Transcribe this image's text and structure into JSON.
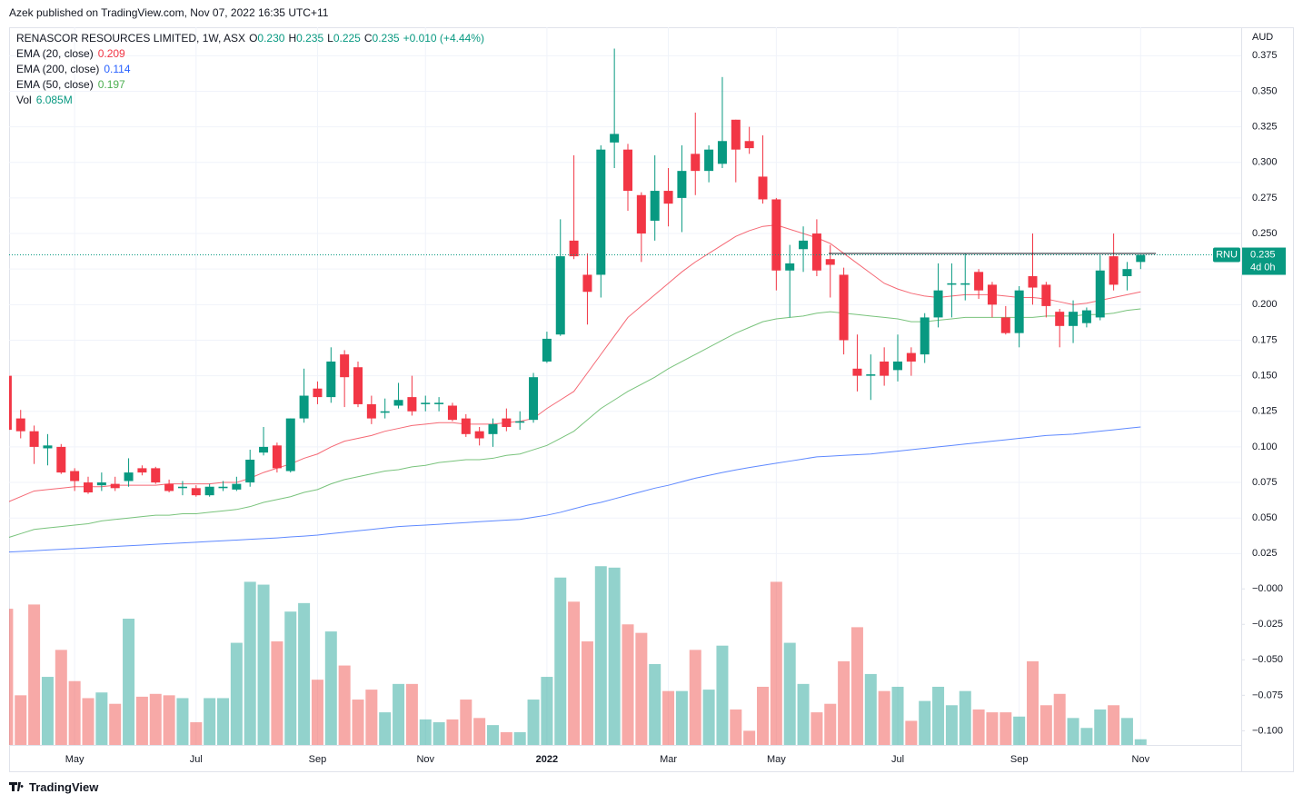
{
  "header": "Azek published on TradingView.com, Nov 07, 2022 16:35 UTC+11",
  "footer": "TradingView",
  "chart_data": [
    {
      "type": "candlestick",
      "title": "RENASCOR RESOURCES LIMITED, 1W, ASX",
      "ohlc_legend": [
        {
          "key": "O",
          "value": "0.230"
        },
        {
          "key": "H",
          "value": "0.235"
        },
        {
          "key": "L",
          "value": "0.225"
        },
        {
          "key": "C",
          "value": "0.235"
        }
      ],
      "change_label": "+0.010 (+4.44%)",
      "axis_title": "AUD",
      "up_color": "#089981",
      "down_color": "#f23645",
      "last_label": {
        "symbol": "RNU",
        "price": "0.235",
        "countdown": "4d 0h"
      },
      "hline": 0.236,
      "categories": [
        null,
        null,
        null,
        null,
        null,
        "May",
        null,
        null,
        null,
        null,
        null,
        null,
        null,
        null,
        "Jul",
        null,
        null,
        null,
        null,
        null,
        null,
        null,
        null,
        "Sep",
        null,
        null,
        null,
        null,
        null,
        null,
        null,
        "Nov",
        null,
        null,
        null,
        null,
        null,
        null,
        null,
        null,
        "2022",
        null,
        null,
        null,
        null,
        null,
        null,
        null,
        null,
        "Mar",
        null,
        null,
        null,
        null,
        null,
        null,
        null,
        "May",
        null,
        null,
        null,
        null,
        null,
        null,
        null,
        null,
        "Jul",
        null,
        null,
        null,
        null,
        null,
        null,
        null,
        null,
        "Sep",
        null,
        null,
        null,
        null,
        null,
        null,
        null,
        null,
        "Nov"
      ],
      "open": [
        0.15,
        0.12,
        0.111,
        0.099,
        0.1,
        0.083,
        0.075,
        0.073,
        0.074,
        0.076,
        0.085,
        0.085,
        0.074,
        0.071,
        0.071,
        0.066,
        0.071,
        0.07,
        0.075,
        0.096,
        0.101,
        0.083,
        0.12,
        0.141,
        0.135,
        0.165,
        0.156,
        0.13,
        0.124,
        0.129,
        0.135,
        0.13,
        0.13,
        0.129,
        0.12,
        0.111,
        0.109,
        0.12,
        0.117,
        0.119,
        0.16,
        0.179,
        0.245,
        0.221,
        0.221,
        0.314,
        0.309,
        0.277,
        0.259,
        0.28,
        0.275,
        0.306,
        0.294,
        0.299,
        0.33,
        0.315,
        0.29,
        0.274,
        0.224,
        0.239,
        0.25,
        0.232,
        0.221,
        0.155,
        0.15,
        0.16,
        0.154,
        0.166,
        0.165,
        0.191,
        0.214,
        0.214,
        0.223,
        0.214,
        0.191,
        0.18,
        0.22,
        0.214,
        0.195,
        0.185,
        0.187,
        0.191,
        0.234,
        0.22,
        0.23
      ],
      "high": [
        0.152,
        0.126,
        0.115,
        0.109,
        0.102,
        0.085,
        0.079,
        0.082,
        0.079,
        0.092,
        0.087,
        0.086,
        0.077,
        0.076,
        0.073,
        0.074,
        0.076,
        0.079,
        0.098,
        0.114,
        0.103,
        0.12,
        0.155,
        0.146,
        0.17,
        0.168,
        0.16,
        0.136,
        0.134,
        0.145,
        0.15,
        0.136,
        0.135,
        0.131,
        0.123,
        0.114,
        0.12,
        0.127,
        0.125,
        0.152,
        0.181,
        0.26,
        0.305,
        0.236,
        0.312,
        0.38,
        0.313,
        0.279,
        0.305,
        0.296,
        0.312,
        0.335,
        0.312,
        0.36,
        0.33,
        0.325,
        0.319,
        0.275,
        0.242,
        0.255,
        0.26,
        0.242,
        0.226,
        0.179,
        0.165,
        0.17,
        0.179,
        0.17,
        0.194,
        0.229,
        0.229,
        0.236,
        0.225,
        0.216,
        0.199,
        0.213,
        0.25,
        0.216,
        0.197,
        0.203,
        0.198,
        0.235,
        0.25,
        0.23,
        0.235
      ],
      "low": [
        0.108,
        0.106,
        0.088,
        0.087,
        0.081,
        0.069,
        0.067,
        0.069,
        0.069,
        0.072,
        0.08,
        0.074,
        0.068,
        0.066,
        0.065,
        0.065,
        0.069,
        0.069,
        0.072,
        0.094,
        0.082,
        0.082,
        0.117,
        0.13,
        0.131,
        0.128,
        0.128,
        0.116,
        0.12,
        0.127,
        0.122,
        0.125,
        0.125,
        0.118,
        0.107,
        0.101,
        0.1,
        0.111,
        0.112,
        0.117,
        0.159,
        0.178,
        0.232,
        0.186,
        0.205,
        0.296,
        0.266,
        0.23,
        0.245,
        0.255,
        0.251,
        0.277,
        0.286,
        0.296,
        0.286,
        0.306,
        0.271,
        0.21,
        0.191,
        0.223,
        0.22,
        0.205,
        0.165,
        0.139,
        0.133,
        0.143,
        0.146,
        0.15,
        0.159,
        0.184,
        0.191,
        0.203,
        0.204,
        0.191,
        0.179,
        0.17,
        0.2,
        0.191,
        0.17,
        0.173,
        0.184,
        0.189,
        0.21,
        0.21,
        0.225
      ],
      "close": [
        0.112,
        0.111,
        0.1,
        0.101,
        0.082,
        0.076,
        0.068,
        0.075,
        0.071,
        0.082,
        0.082,
        0.075,
        0.069,
        0.072,
        0.066,
        0.072,
        0.072,
        0.074,
        0.091,
        0.1,
        0.085,
        0.12,
        0.136,
        0.135,
        0.16,
        0.149,
        0.13,
        0.12,
        0.125,
        0.133,
        0.125,
        0.131,
        0.131,
        0.119,
        0.109,
        0.106,
        0.116,
        0.114,
        0.118,
        0.149,
        0.176,
        0.234,
        0.234,
        0.209,
        0.309,
        0.32,
        0.28,
        0.25,
        0.28,
        0.271,
        0.294,
        0.294,
        0.309,
        0.315,
        0.309,
        0.31,
        0.274,
        0.224,
        0.229,
        0.245,
        0.224,
        0.228,
        0.175,
        0.15,
        0.151,
        0.15,
        0.16,
        0.16,
        0.191,
        0.21,
        0.215,
        0.215,
        0.21,
        0.2,
        0.18,
        0.21,
        0.212,
        0.199,
        0.185,
        0.195,
        0.196,
        0.224,
        0.214,
        0.225,
        0.235
      ],
      "series": [
        {
          "name": "EMA (20, close)",
          "color": "#f23645",
          "last_label": "0.209",
          "values": [
            0.061,
            0.065,
            0.069,
            0.07,
            0.071,
            0.072,
            0.072,
            0.072,
            0.073,
            0.073,
            0.073,
            0.073,
            0.074,
            0.074,
            0.074,
            0.074,
            0.075,
            0.075,
            0.078,
            0.082,
            0.085,
            0.088,
            0.092,
            0.095,
            0.1,
            0.104,
            0.106,
            0.108,
            0.111,
            0.113,
            0.115,
            0.116,
            0.117,
            0.117,
            0.116,
            0.116,
            0.116,
            0.117,
            0.118,
            0.12,
            0.127,
            0.133,
            0.139,
            0.152,
            0.165,
            0.178,
            0.191,
            0.199,
            0.207,
            0.215,
            0.223,
            0.23,
            0.236,
            0.242,
            0.248,
            0.252,
            0.255,
            0.256,
            0.253,
            0.25,
            0.247,
            0.243,
            0.236,
            0.229,
            0.222,
            0.215,
            0.211,
            0.208,
            0.206,
            0.205,
            0.206,
            0.207,
            0.207,
            0.207,
            0.206,
            0.205,
            0.205,
            0.204,
            0.202,
            0.2,
            0.201,
            0.203,
            0.205,
            0.207,
            0.209
          ]
        },
        {
          "name": "EMA (200, close)",
          "color": "#2962ff",
          "last_label": "0.114",
          "values": [
            0.026,
            0.0265,
            0.027,
            0.0275,
            0.028,
            0.0285,
            0.029,
            0.0295,
            0.03,
            0.0305,
            0.031,
            0.0315,
            0.032,
            0.0325,
            0.033,
            0.0335,
            0.034,
            0.0345,
            0.035,
            0.0355,
            0.036,
            0.0367,
            0.0373,
            0.038,
            0.039,
            0.04,
            0.041,
            0.042,
            0.043,
            0.044,
            0.0445,
            0.045,
            0.0456,
            0.0462,
            0.0468,
            0.0474,
            0.048,
            0.0485,
            0.049,
            0.0505,
            0.052,
            0.054,
            0.0565,
            0.059,
            0.061,
            0.0635,
            0.066,
            0.0685,
            0.071,
            0.073,
            0.0755,
            0.078,
            0.08,
            0.082,
            0.0838,
            0.0855,
            0.087,
            0.0885,
            0.09,
            0.0915,
            0.093,
            0.0935,
            0.094,
            0.0945,
            0.095,
            0.096,
            0.097,
            0.098,
            0.099,
            0.1,
            0.101,
            0.102,
            0.103,
            0.104,
            0.105,
            0.106,
            0.107,
            0.108,
            0.1085,
            0.109,
            0.11,
            0.111,
            0.112,
            0.113,
            0.114
          ]
        },
        {
          "name": "EMA (50, close)",
          "color": "#4caf50",
          "last_label": "0.197",
          "values": [
            0.036,
            0.039,
            0.042,
            0.043,
            0.044,
            0.045,
            0.046,
            0.048,
            0.049,
            0.05,
            0.051,
            0.052,
            0.052,
            0.053,
            0.053,
            0.054,
            0.055,
            0.056,
            0.058,
            0.061,
            0.063,
            0.065,
            0.068,
            0.07,
            0.074,
            0.077,
            0.079,
            0.081,
            0.083,
            0.084,
            0.086,
            0.087,
            0.089,
            0.09,
            0.091,
            0.091,
            0.092,
            0.094,
            0.095,
            0.098,
            0.101,
            0.106,
            0.111,
            0.119,
            0.127,
            0.133,
            0.139,
            0.144,
            0.149,
            0.155,
            0.16,
            0.165,
            0.17,
            0.175,
            0.18,
            0.184,
            0.188,
            0.19,
            0.191,
            0.192,
            0.194,
            0.195,
            0.194,
            0.193,
            0.192,
            0.191,
            0.19,
            0.188,
            0.188,
            0.189,
            0.19,
            0.191,
            0.191,
            0.191,
            0.191,
            0.191,
            0.191,
            0.192,
            0.192,
            0.192,
            0.193,
            0.193,
            0.194,
            0.196,
            0.197
          ]
        }
      ],
      "ylim": [
        0.015,
        0.395
      ],
      "yticks": [
        0.025,
        {
          "value": 0.05,
          "label": "0.050"
        },
        0.075,
        {
          "value": 0.1,
          "label": "0.100"
        },
        0.125,
        {
          "value": 0.15,
          "label": "0.150"
        },
        0.175,
        {
          "value": 0.2,
          "label": "0.200"
        },
        0.225,
        {
          "value": 0.25,
          "label": "0.250"
        },
        0.275,
        {
          "value": 0.3,
          "label": "0.300"
        },
        0.325,
        {
          "value": 0.35,
          "label": "0.350"
        },
        0.375
      ],
      "grid": true
    },
    {
      "type": "bar",
      "name": "Vol",
      "legend_value": "6.085M",
      "up_color": "rgba(38,166,154,0.5)",
      "down_color": "rgba(239,83,80,0.5)",
      "values": [
        -0.014,
        -0.075,
        -0.011,
        -0.062,
        -0.043,
        -0.065,
        -0.077,
        -0.073,
        -0.081,
        -0.021,
        -0.076,
        -0.074,
        -0.075,
        -0.077,
        -0.094,
        -0.077,
        -0.077,
        -0.038,
        0.005,
        0.003,
        -0.037,
        -0.016,
        -0.01,
        -0.064,
        -0.03,
        -0.054,
        -0.078,
        -0.071,
        -0.087,
        -0.067,
        -0.067,
        -0.092,
        -0.094,
        -0.092,
        -0.078,
        -0.091,
        -0.096,
        -0.101,
        -0.101,
        -0.078,
        -0.062,
        0.008,
        -0.009,
        -0.037,
        0.016,
        0.015,
        -0.025,
        -0.031,
        -0.053,
        -0.072,
        -0.072,
        -0.043,
        -0.071,
        -0.04,
        -0.085,
        -0.1,
        -0.069,
        0.005,
        -0.038,
        -0.067,
        -0.087,
        -0.081,
        -0.051,
        -0.027,
        -0.06,
        -0.072,
        -0.069,
        -0.093,
        -0.079,
        -0.069,
        -0.082,
        -0.072,
        -0.085,
        -0.087,
        -0.087,
        -0.09,
        -0.051,
        -0.082,
        -0.074,
        -0.091,
        -0.098,
        -0.085,
        -0.082,
        -0.091,
        -0.106
      ],
      "ylim": [
        -0.11,
        0.02
      ],
      "yticks": [
        {
          "value": 0,
          "label": "−0.000"
        },
        {
          "value": -0.025,
          "label": "−0.025"
        },
        {
          "value": -0.05,
          "label": "−0.050"
        },
        {
          "value": -0.075,
          "label": "−0.075"
        },
        {
          "value": -0.1,
          "label": "−0.100"
        }
      ]
    }
  ]
}
